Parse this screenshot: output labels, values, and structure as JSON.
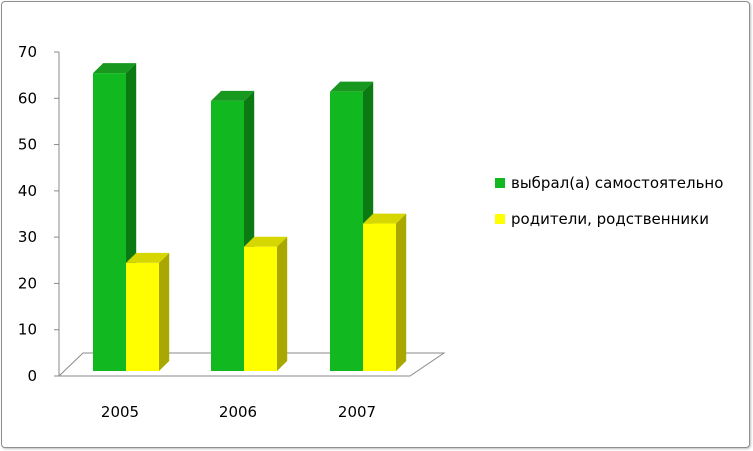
{
  "chart_data": {
    "type": "bar",
    "three_d": true,
    "categories": [
      "2005",
      "2006",
      "2007"
    ],
    "series": [
      {
        "name": "выбрал(а) самостоятельно",
        "values": [
          65,
          59,
          61
        ],
        "color": "#11b820",
        "side_color": "#0b7a12",
        "top_color": "#18981f"
      },
      {
        "name": "родители, родственники",
        "values": [
          24,
          27.5,
          32.5
        ],
        "color": "#ffff00",
        "side_color": "#a8a800",
        "top_color": "#d6d600"
      }
    ],
    "ylim": [
      0,
      70
    ],
    "yticks": [
      "0",
      "10",
      "20",
      "30",
      "40",
      "50",
      "60",
      "70"
    ],
    "grid": false,
    "legend_position": "right"
  }
}
